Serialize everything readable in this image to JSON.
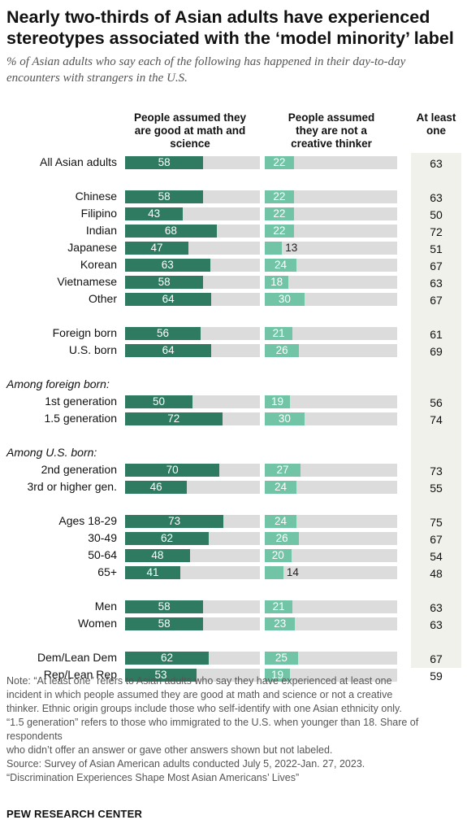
{
  "title": "Nearly two-thirds of Asian adults have experienced stereotypes associated with the ‘model minority’ label",
  "subtitle": "% of Asian adults who say each of the following has happened in their day-to-day encounters with strangers in the U.S.",
  "colors": {
    "math": "#2e7b61",
    "creative": "#72c4a6",
    "track": "#dcdcdc",
    "atleast_bg": "#f1f1ec"
  },
  "chart_data": {
    "type": "bar",
    "orientation": "horizontal",
    "xlim": [
      0,
      100
    ],
    "series": [
      {
        "name": "People assumed they are good at math and science",
        "key": "math"
      },
      {
        "name": "People assumed they are not a creative thinker",
        "key": "creative"
      },
      {
        "name": "At least one",
        "key": "atleast"
      }
    ],
    "groups": [
      {
        "label": "",
        "rows": [
          {
            "label": "All Asian adults",
            "math": 58,
            "creative": 22,
            "atleast": 63
          }
        ]
      },
      {
        "label": "",
        "rows": [
          {
            "label": "Chinese",
            "math": 58,
            "creative": 22,
            "atleast": 63
          },
          {
            "label": "Filipino",
            "math": 43,
            "creative": 22,
            "atleast": 50
          },
          {
            "label": "Indian",
            "math": 68,
            "creative": 22,
            "atleast": 72
          },
          {
            "label": "Japanese",
            "math": 47,
            "creative": 13,
            "atleast": 51
          },
          {
            "label": "Korean",
            "math": 63,
            "creative": 24,
            "atleast": 67
          },
          {
            "label": "Vietnamese",
            "math": 58,
            "creative": 18,
            "atleast": 63
          },
          {
            "label": "Other",
            "math": 64,
            "creative": 30,
            "atleast": 67
          }
        ]
      },
      {
        "label": "",
        "rows": [
          {
            "label": "Foreign born",
            "math": 56,
            "creative": 21,
            "atleast": 61
          },
          {
            "label": "U.S. born",
            "math": 64,
            "creative": 26,
            "atleast": 69
          }
        ]
      },
      {
        "label": "Among foreign born:",
        "rows": [
          {
            "label": "1st generation",
            "math": 50,
            "creative": 19,
            "atleast": 56
          },
          {
            "label": "1.5 generation",
            "math": 72,
            "creative": 30,
            "atleast": 74
          }
        ]
      },
      {
        "label": "Among U.S. born:",
        "rows": [
          {
            "label": "2nd generation",
            "math": 70,
            "creative": 27,
            "atleast": 73
          },
          {
            "label": "3rd or higher gen.",
            "math": 46,
            "creative": 24,
            "atleast": 55
          }
        ]
      },
      {
        "label": "",
        "rows": [
          {
            "label": "Ages 18-29",
            "math": 73,
            "creative": 24,
            "atleast": 75
          },
          {
            "label": "30-49",
            "math": 62,
            "creative": 26,
            "atleast": 67
          },
          {
            "label": "50-64",
            "math": 48,
            "creative": 20,
            "atleast": 54
          },
          {
            "label": "65+",
            "math": 41,
            "creative": 14,
            "atleast": 48
          }
        ]
      },
      {
        "label": "",
        "rows": [
          {
            "label": "Men",
            "math": 58,
            "creative": 21,
            "atleast": 63
          },
          {
            "label": "Women",
            "math": 58,
            "creative": 23,
            "atleast": 63
          }
        ]
      },
      {
        "label": "",
        "rows": [
          {
            "label": "Dem/Lean Dem",
            "math": 62,
            "creative": 25,
            "atleast": 67
          },
          {
            "label": "Rep/Lean Rep",
            "math": 53,
            "creative": 19,
            "atleast": 59
          }
        ]
      }
    ]
  },
  "columns": {
    "math": [
      "People assumed they",
      "are good at math and",
      "science"
    ],
    "creative": [
      "People assumed",
      "they are not a",
      "creative thinker"
    ],
    "atleast": [
      "At least",
      "one"
    ]
  },
  "notes": [
    "Note: “At least one” refers to Asian adults who say they have experienced at least one",
    "incident in which people assumed they are good at math and science or not a creative",
    "thinker. Ethnic origin groups include those who self-identify with one Asian ethnicity only.",
    "“1.5 generation” refers to those who immigrated to the U.S. when younger than 18. Share of",
    "respondents",
    "who didn’t offer an answer or gave other answers shown but not labeled.",
    "Source: Survey of Asian American adults conducted July 5, 2022-Jan. 27, 2023.",
    "“Discrimination Experiences Shape Most Asian Americans’ Lives”"
  ],
  "footer": "PEW RESEARCH CENTER"
}
